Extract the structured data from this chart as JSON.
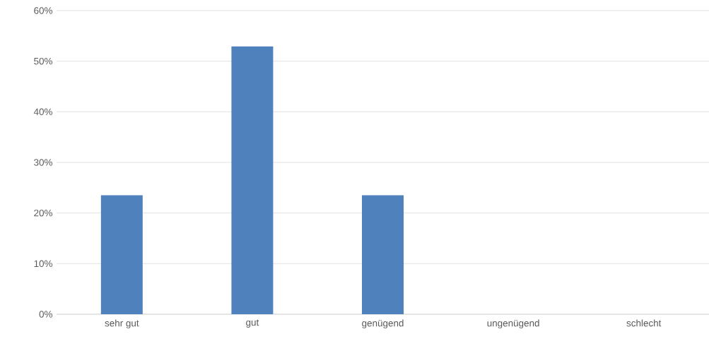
{
  "chart_data": {
    "type": "bar",
    "categories": [
      "sehr gut",
      "gut",
      "genügend",
      "ungenügend",
      "schlecht"
    ],
    "values": [
      23.5,
      52.9,
      23.5,
      0,
      0
    ],
    "color": "#4f81bd",
    "ylim": [
      0,
      60
    ],
    "yticks": [
      {
        "value": 0,
        "label": "0%"
      },
      {
        "value": 10,
        "label": "10%"
      },
      {
        "value": 20,
        "label": "20%"
      },
      {
        "value": 30,
        "label": "30%"
      },
      {
        "value": 40,
        "label": "40%"
      },
      {
        "value": 50,
        "label": "50%"
      },
      {
        "value": 60,
        "label": "60%"
      }
    ],
    "grid": "y"
  }
}
